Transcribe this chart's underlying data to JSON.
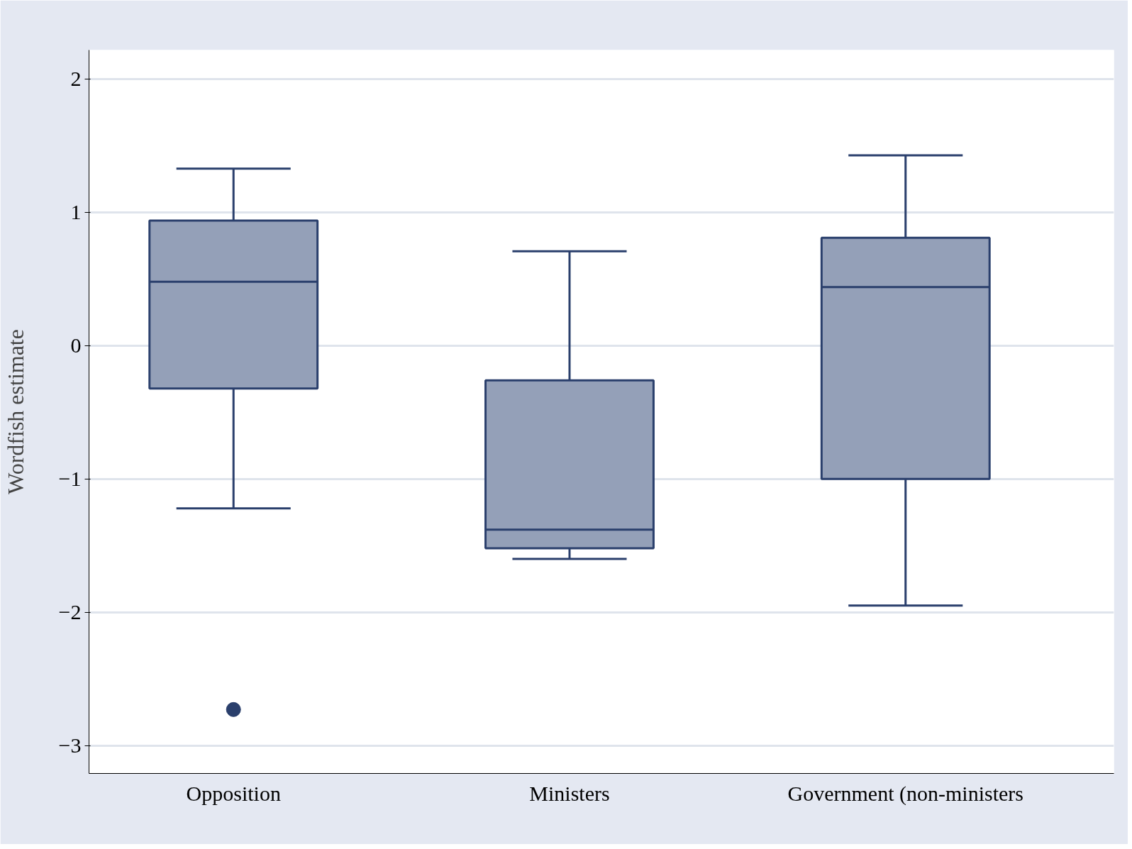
{
  "chart_data": {
    "type": "box",
    "ylabel": "Wordfish estimate",
    "categories": [
      "Opposition",
      "Ministers",
      "Government (non-ministers"
    ],
    "boxes": [
      {
        "low": -1.22,
        "q1": -0.32,
        "median": 0.48,
        "q3": 0.94,
        "high": 1.33,
        "outliers": [
          -2.73
        ]
      },
      {
        "low": -1.6,
        "q1": -1.52,
        "median": -1.38,
        "q3": -0.26,
        "high": 0.71
      },
      {
        "low": -1.95,
        "q1": -1.0,
        "median": 0.44,
        "q3": 0.81,
        "high": 1.43
      }
    ],
    "color": "#94a0b8",
    "ylim": [
      -3.21,
      2.22
    ],
    "yticks": [
      -3,
      -2,
      -1,
      0,
      1,
      2
    ],
    "grid": "y"
  }
}
